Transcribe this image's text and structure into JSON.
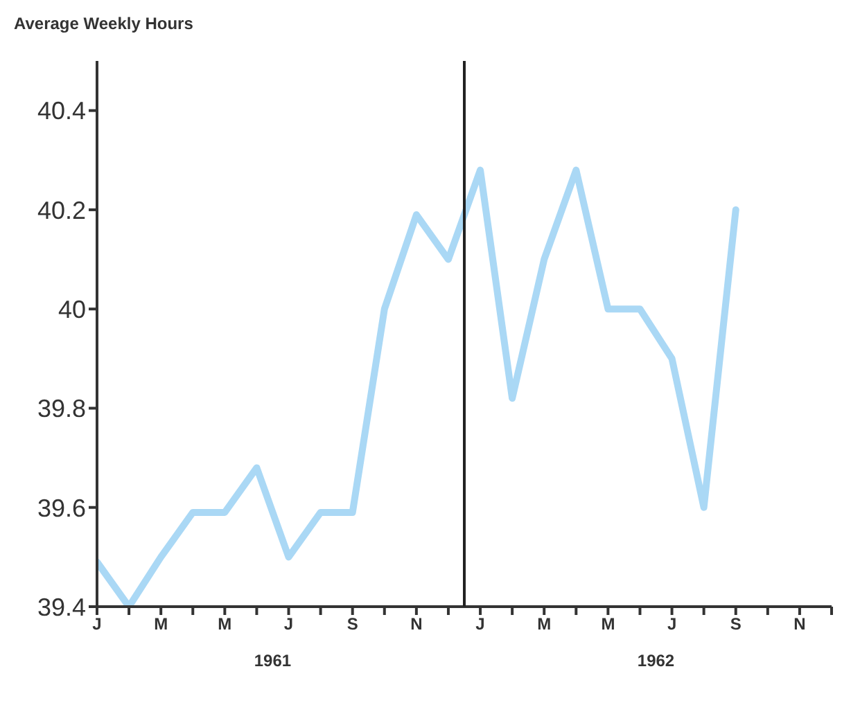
{
  "chart_data": {
    "type": "line",
    "ylabel": "Average Weekly Hours",
    "marker": "none",
    "categories": [
      "J",
      null,
      "M",
      null,
      "M",
      null,
      "J",
      null,
      "S",
      null,
      "N",
      null,
      "J",
      null,
      "M",
      null,
      "M",
      null,
      "J",
      null,
      "S",
      null,
      "N",
      null
    ],
    "series": [
      {
        "color": "#aad8f5",
        "values": [
          39.49,
          39.4,
          39.5,
          39.59,
          39.59,
          39.68,
          39.5,
          39.59,
          39.59,
          40.0,
          40.19,
          40.1,
          40.28,
          39.82,
          40.1,
          40.28,
          40.0,
          40.0,
          39.9,
          39.6,
          40.2,
          null,
          null,
          null
        ]
      }
    ],
    "ylim": [
      39.4,
      40.5
    ],
    "yticks": [
      39.4,
      39.6,
      39.8,
      40.0,
      40.2,
      40.4
    ],
    "annotations": [
      "1961",
      "1962"
    ]
  }
}
